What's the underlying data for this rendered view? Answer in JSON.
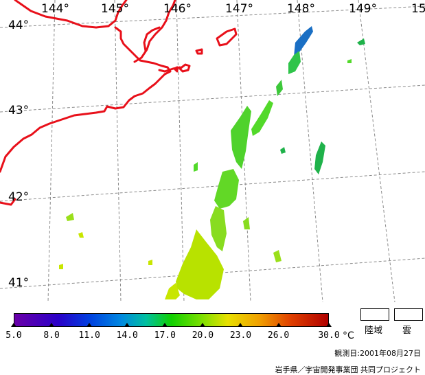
{
  "map": {
    "longitude_labels": [
      "144°",
      "145°",
      "146°",
      "147°",
      "148°",
      "149°",
      "15"
    ],
    "latitude_labels": [
      "44°",
      "43°",
      "42°",
      "41°"
    ],
    "colors": {
      "coastline": "#e8101a",
      "graticule": "#8a8a8a",
      "sst_warm": "#c8e600",
      "sst_mid": "#52d92a",
      "sst_cool": "#1fb24a",
      "sst_cold": "#1a6fc4"
    }
  },
  "colorbar": {
    "tick_labels": [
      "5.0",
      "8.0",
      "11.0",
      "14.0",
      "17.0",
      "20.0",
      "23.0",
      "26.0",
      "30.0"
    ],
    "unit": "°C",
    "range": [
      5.0,
      30.0
    ]
  },
  "legend": {
    "land_label": "陸域",
    "cloud_label": "雲"
  },
  "footer": {
    "observation_date": "観測日:2001年08月27日",
    "credit": "岩手県／宇宙開発事業団 共同プロジェクト"
  }
}
